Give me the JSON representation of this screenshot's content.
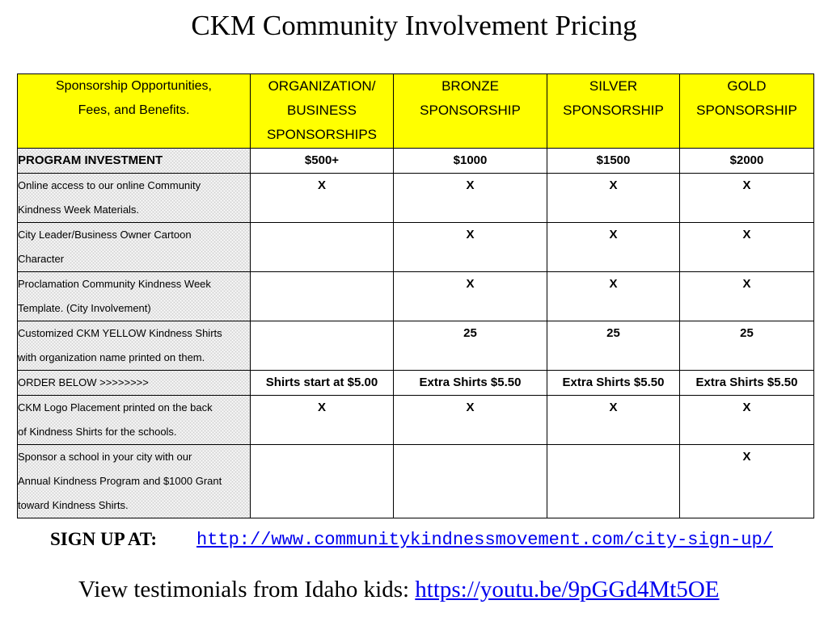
{
  "title": "CKM Community Involvement Pricing",
  "table": {
    "header": {
      "description": [
        "Sponsorship Opportunities,",
        "Fees, and Benefits."
      ],
      "columns": [
        [
          "ORGANIZATION/",
          "BUSINESS",
          "SPONSORSHIPS"
        ],
        [
          "BRONZE",
          "SPONSORSHIP"
        ],
        [
          "SILVER",
          "SPONSORSHIP"
        ],
        [
          "GOLD",
          "SPONSORSHIP"
        ]
      ]
    },
    "rows": [
      {
        "label": [
          "PROGRAM INVESTMENT"
        ],
        "values": [
          "$500+",
          "$1000",
          "$1500",
          "$2000"
        ]
      },
      {
        "label": [
          "Online access to our online Community",
          "Kindness Week Materials."
        ],
        "values": [
          "X",
          "X",
          "X",
          "X"
        ]
      },
      {
        "label": [
          "City Leader/Business Owner Cartoon",
          "Character"
        ],
        "values": [
          "",
          "X",
          "X",
          "X"
        ]
      },
      {
        "label": [
          "Proclamation Community Kindness Week",
          "Template. (City Involvement)"
        ],
        "values": [
          "",
          "X",
          "X",
          "X"
        ]
      },
      {
        "label": [
          "Customized CKM YELLOW Kindness Shirts",
          "with organization name printed on them."
        ],
        "values": [
          "",
          "25",
          "25",
          "25"
        ]
      },
      {
        "label": [
          "ORDER BELOW >>>>>>>>"
        ],
        "values": [
          "Shirts start at $5.00",
          "Extra Shirts $5.50",
          "Extra Shirts $5.50",
          "Extra Shirts $5.50"
        ]
      },
      {
        "label": [
          "CKM Logo Placement printed on the back",
          "of Kindness Shirts for the schools."
        ],
        "values": [
          "X",
          "X",
          "X",
          "X"
        ]
      },
      {
        "label": [
          "Sponsor a school in your city with our",
          "Annual Kindness Program and $1000 Grant",
          "toward Kindness Shirts."
        ],
        "values": [
          "",
          "",
          "",
          "X"
        ]
      }
    ]
  },
  "signup": {
    "label": "SIGN UP AT:",
    "url": "http://www.communitykindnessmovement.com/city-sign-up/"
  },
  "testimonials": {
    "text": "View testimonials from Idaho kids: ",
    "url": "https://youtu.be/9pGGd4Mt5OE"
  },
  "colors": {
    "header_background": "#ffff00",
    "link": "#0000ee"
  }
}
